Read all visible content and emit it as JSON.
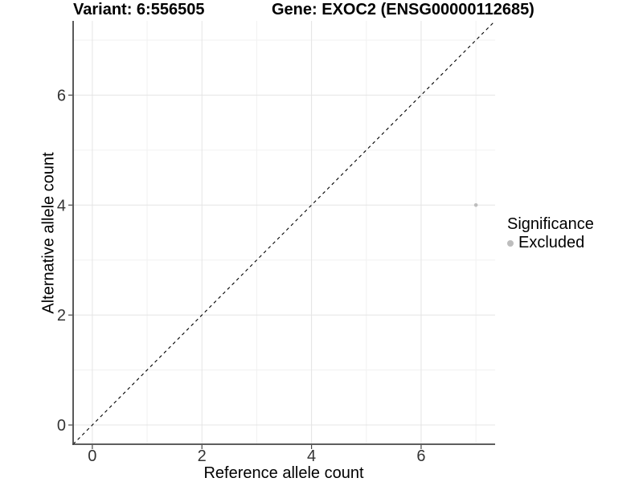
{
  "chart_data": {
    "type": "scatter",
    "titles": {
      "left": "Variant: 6:556505",
      "right": "Gene: EXOC2 (ENSG00000112685)"
    },
    "xlabel": "Reference allele count",
    "ylabel": "Alternative allele count",
    "xlim": [
      -0.35,
      7.35
    ],
    "ylim": [
      -0.35,
      7.35
    ],
    "x_major_ticks": [
      0,
      2,
      4,
      6
    ],
    "y_major_ticks": [
      0,
      2,
      4,
      6
    ],
    "x_minor_ticks": [
      1,
      3,
      5,
      7
    ],
    "y_minor_ticks": [
      1,
      3,
      5,
      7
    ],
    "grid": "major+minor",
    "reference_line": {
      "type": "identity",
      "slope": 1,
      "intercept": 0,
      "style": "dashed",
      "color": "#000000"
    },
    "series": [
      {
        "name": "Excluded",
        "color": "#bdbdbd",
        "points": [
          {
            "x": 7,
            "y": 4
          }
        ]
      }
    ],
    "legend": {
      "title": "Significance",
      "position": "right",
      "items": [
        {
          "label": "Excluded",
          "color": "#bdbdbd"
        }
      ]
    }
  },
  "colors": {
    "background": "#ffffff",
    "grid_major": "#e4e4e4",
    "grid_minor": "#f1f1f1",
    "axis_line": "#474747",
    "tick_label": "#333333",
    "title": "#000000"
  }
}
